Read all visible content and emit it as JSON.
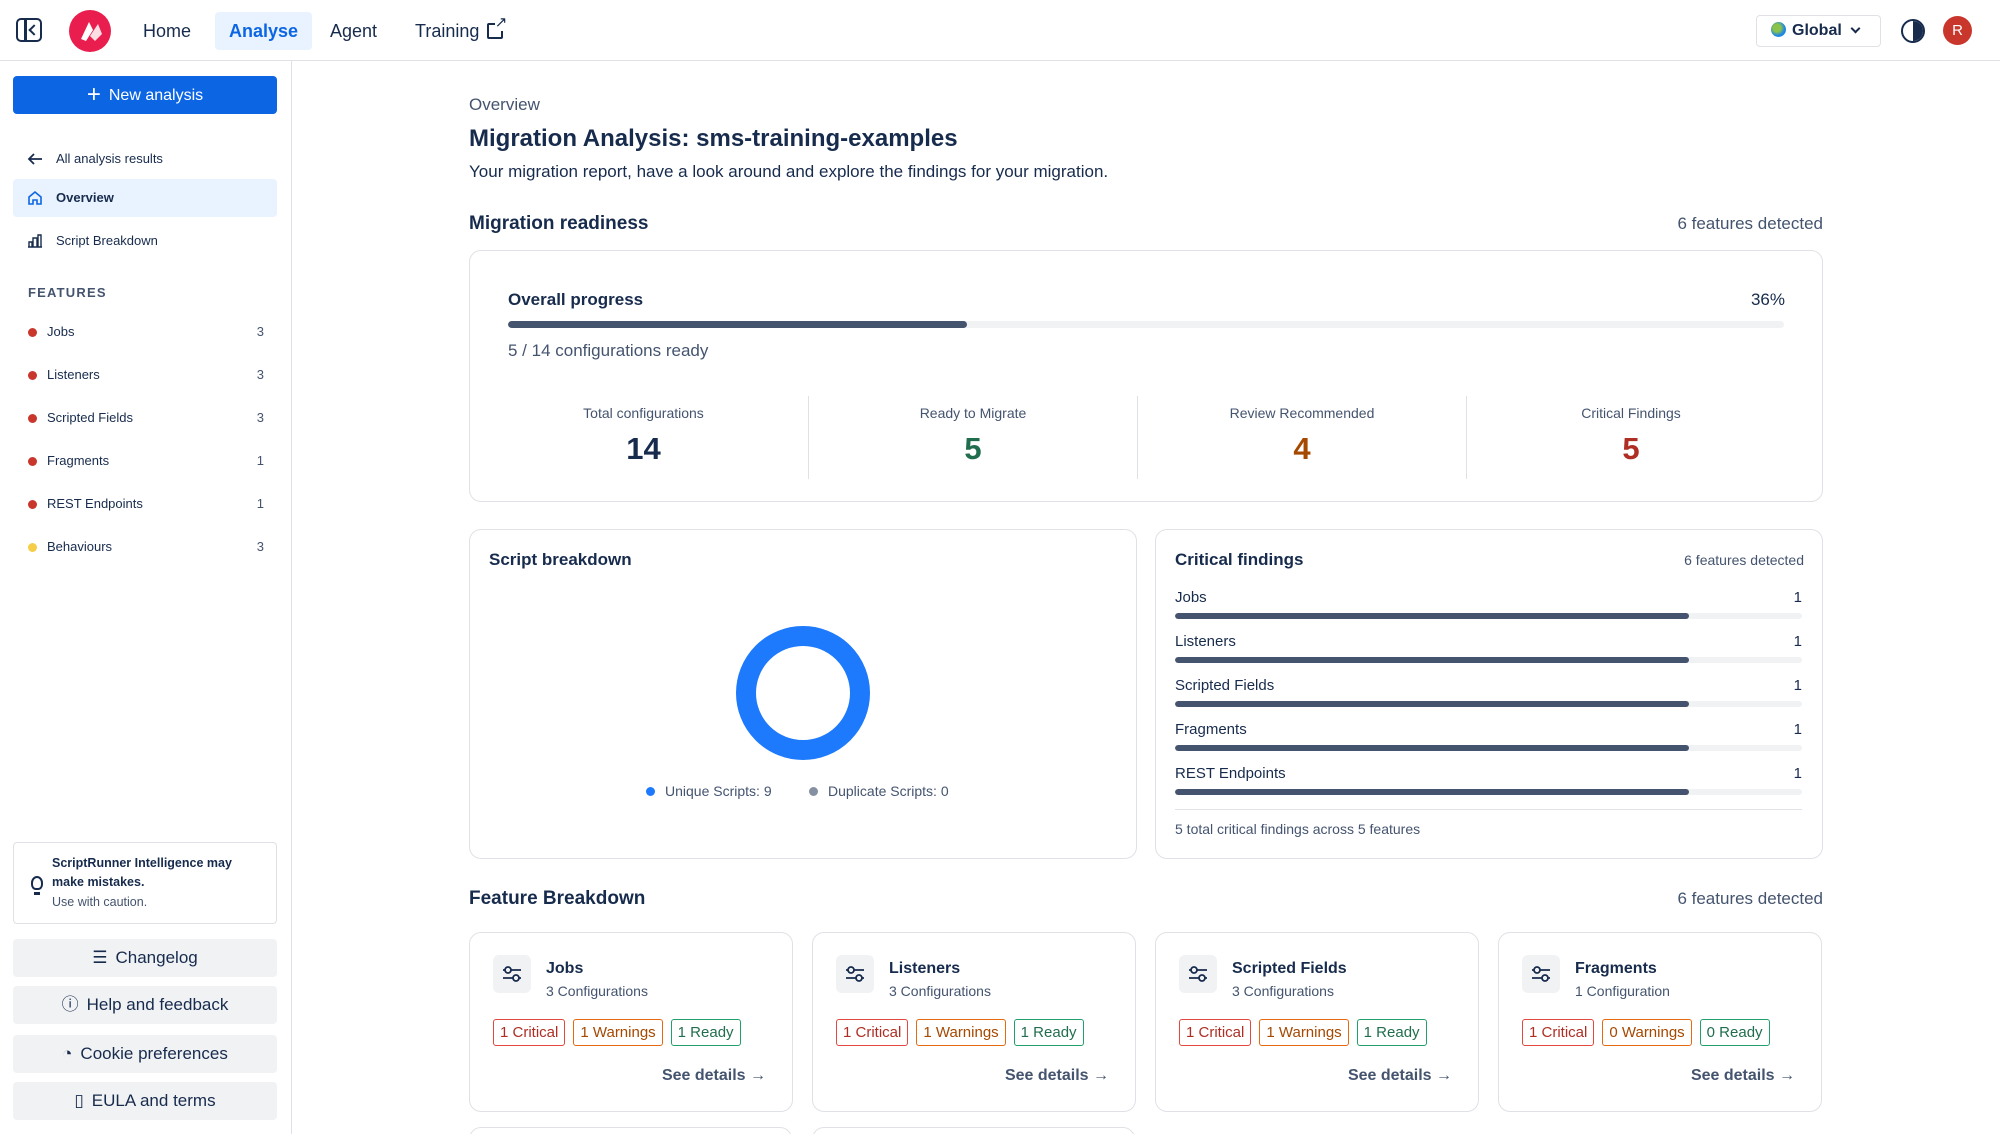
{
  "topnav": {
    "home": "Home",
    "analyse": "Analyse",
    "agent": "Agent",
    "training": "Training",
    "region": "Global",
    "avatar_initial": "R"
  },
  "sidebar": {
    "new_analysis": "New analysis",
    "back": "All analysis results",
    "overview": "Overview",
    "script_breakdown": "Script Breakdown",
    "features_heading": "FEATURES",
    "features": [
      {
        "label": "Jobs",
        "count": "3",
        "color": "#c9372c"
      },
      {
        "label": "Listeners",
        "count": "3",
        "color": "#c9372c"
      },
      {
        "label": "Scripted Fields",
        "count": "3",
        "color": "#c9372c"
      },
      {
        "label": "Fragments",
        "count": "1",
        "color": "#c9372c"
      },
      {
        "label": "REST Endpoints",
        "count": "1",
        "color": "#c9372c"
      },
      {
        "label": "Behaviours",
        "count": "3",
        "color": "#f5cd47"
      }
    ],
    "notice_line1": "ScriptRunner Intelligence may make mistakes.",
    "notice_line2": "Use with caution.",
    "changelog": "Changelog",
    "help": "Help and feedback",
    "cookies": "Cookie preferences",
    "eula": "EULA and terms"
  },
  "main": {
    "breadcrumb": "Overview",
    "title": "Migration Analysis: sms-training-examples",
    "subtitle": "Your migration report, have a look around and explore the findings for your migration.",
    "readiness_title": "Migration readiness",
    "readiness_count": "6 features detected",
    "progress_label": "Overall progress",
    "progress_pct_text": "36%",
    "progress_fraction": 0.36,
    "progress_sub": "5 / 14 configurations ready",
    "stats": [
      {
        "label": "Total configurations",
        "value": "14",
        "color": "#172b4d"
      },
      {
        "label": "Ready to Migrate",
        "value": "5",
        "color": "#216e4e"
      },
      {
        "label": "Review Recommended",
        "value": "4",
        "color": "#a54800"
      },
      {
        "label": "Critical Findings",
        "value": "5",
        "color": "#ae2e24"
      }
    ],
    "script_breakdown_title": "Script breakdown",
    "script_legend": [
      {
        "label": "Unique Scripts: 9",
        "color": "#1d7afc"
      },
      {
        "label": "Duplicate Scripts: 0",
        "color": "#8590a2"
      }
    ],
    "script_chart": {
      "unique": 9,
      "duplicate": 0
    },
    "critical_title": "Critical findings",
    "critical_count": "6 features detected",
    "critical_rows": [
      {
        "name": "Jobs",
        "count": "1",
        "fraction": 0.82
      },
      {
        "name": "Listeners",
        "count": "1",
        "fraction": 0.82
      },
      {
        "name": "Scripted Fields",
        "count": "1",
        "fraction": 0.82
      },
      {
        "name": "Fragments",
        "count": "1",
        "fraction": 0.82
      },
      {
        "name": "REST Endpoints",
        "count": "1",
        "fraction": 0.82
      }
    ],
    "critical_footer": "5 total critical findings across 5 features",
    "feature_breakdown_title": "Feature Breakdown",
    "feature_breakdown_count": "6 features detected",
    "feature_cards": [
      {
        "name": "Jobs",
        "sub": "3 Configurations",
        "critical": "1 Critical",
        "warnings": "1 Warnings",
        "ready": "1 Ready",
        "see": "See details"
      },
      {
        "name": "Listeners",
        "sub": "3 Configurations",
        "critical": "1 Critical",
        "warnings": "1 Warnings",
        "ready": "1 Ready",
        "see": "See details"
      },
      {
        "name": "Scripted Fields",
        "sub": "3 Configurations",
        "critical": "1 Critical",
        "warnings": "1 Warnings",
        "ready": "1 Ready",
        "see": "See details"
      },
      {
        "name": "Fragments",
        "sub": "1 Configuration",
        "critical": "1 Critical",
        "warnings": "0 Warnings",
        "ready": "0 Ready",
        "see": "See details"
      }
    ]
  }
}
